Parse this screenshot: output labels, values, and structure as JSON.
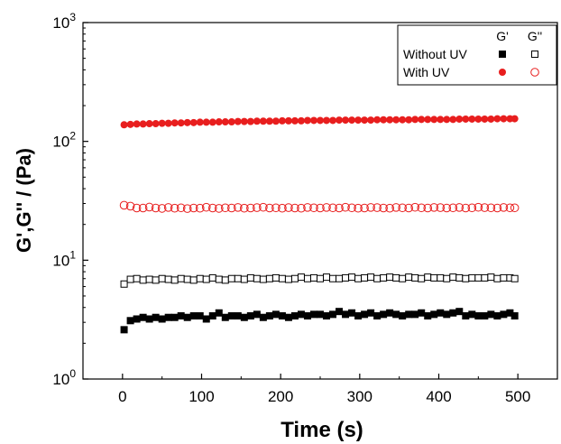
{
  "chart_data": {
    "type": "scatter",
    "title": "",
    "xlabel": "Time (s)",
    "ylabel": "G',G'' / (Pa)",
    "xlim": [
      -50,
      550
    ],
    "ylim": [
      1,
      1000
    ],
    "yscale": "log",
    "xticks": [
      0,
      100,
      200,
      300,
      400,
      500
    ],
    "xtick_labels": [
      "0",
      "100",
      "200",
      "300",
      "400",
      "500"
    ],
    "yticks": [
      1,
      10,
      100,
      1000
    ],
    "ytick_labels": [
      {
        "base": "10",
        "exp": "0"
      },
      {
        "base": "10",
        "exp": "1"
      },
      {
        "base": "10",
        "exp": "2"
      },
      {
        "base": "10",
        "exp": "3"
      }
    ],
    "grid": false,
    "legend": {
      "placement": "top-right",
      "column_headers": [
        "G'",
        "G''"
      ],
      "rows": [
        "Without UV",
        "With UV"
      ]
    },
    "x": [
      2,
      10,
      18,
      26,
      34,
      42,
      50,
      58,
      66,
      74,
      82,
      90,
      98,
      106,
      114,
      122,
      130,
      138,
      146,
      154,
      162,
      170,
      178,
      186,
      194,
      202,
      210,
      218,
      226,
      234,
      242,
      250,
      258,
      266,
      274,
      282,
      290,
      298,
      306,
      314,
      322,
      330,
      338,
      346,
      354,
      362,
      370,
      378,
      386,
      394,
      402,
      410,
      418,
      426,
      434,
      442,
      450,
      458,
      466,
      474,
      482,
      490,
      496
    ],
    "series": [
      {
        "name": "Without UV G'",
        "marker": "square-filled",
        "color": "#000000",
        "values": [
          2.6,
          3.1,
          3.2,
          3.3,
          3.2,
          3.3,
          3.2,
          3.3,
          3.3,
          3.4,
          3.3,
          3.4,
          3.4,
          3.2,
          3.4,
          3.6,
          3.3,
          3.4,
          3.4,
          3.3,
          3.4,
          3.5,
          3.3,
          3.4,
          3.5,
          3.4,
          3.3,
          3.4,
          3.5,
          3.4,
          3.5,
          3.5,
          3.4,
          3.5,
          3.7,
          3.5,
          3.6,
          3.4,
          3.5,
          3.6,
          3.4,
          3.5,
          3.6,
          3.5,
          3.4,
          3.5,
          3.5,
          3.6,
          3.4,
          3.5,
          3.6,
          3.5,
          3.6,
          3.7,
          3.4,
          3.5,
          3.4,
          3.4,
          3.5,
          3.4,
          3.5,
          3.6,
          3.4
        ]
      },
      {
        "name": "Without UV G''",
        "marker": "square-open",
        "color": "#000000",
        "values": [
          6.3,
          6.9,
          7.0,
          6.8,
          6.9,
          6.8,
          7.0,
          6.9,
          6.8,
          7.0,
          6.9,
          6.8,
          7.0,
          6.9,
          7.1,
          6.9,
          6.8,
          7.0,
          7.0,
          6.9,
          7.1,
          7.0,
          6.9,
          7.0,
          7.1,
          7.0,
          6.9,
          7.0,
          7.2,
          7.0,
          7.1,
          7.0,
          7.2,
          7.0,
          7.0,
          7.1,
          7.2,
          7.0,
          7.1,
          7.2,
          7.0,
          7.1,
          7.2,
          7.1,
          7.0,
          7.2,
          7.1,
          7.0,
          7.2,
          7.1,
          7.1,
          7.0,
          7.2,
          7.1,
          7.0,
          7.1,
          7.1,
          7.1,
          7.2,
          7.0,
          7.1,
          7.1,
          7.0
        ]
      },
      {
        "name": "With UV G'",
        "marker": "circle-filled",
        "color": "#e81e1e",
        "values": [
          138,
          139,
          140,
          140,
          141,
          141,
          142,
          142,
          143,
          143,
          144,
          144,
          145,
          145,
          145,
          146,
          146,
          146,
          147,
          147,
          147,
          148,
          148,
          148,
          148,
          149,
          149,
          149,
          149,
          150,
          150,
          150,
          150,
          150,
          151,
          151,
          151,
          151,
          151,
          151,
          152,
          152,
          152,
          152,
          152,
          152,
          153,
          153,
          153,
          153,
          153,
          153,
          153,
          154,
          154,
          154,
          154,
          154,
          154,
          155,
          155,
          155,
          155
        ]
      },
      {
        "name": "With UV G''",
        "marker": "circle-open",
        "color": "#e81e1e",
        "values": [
          29,
          28.5,
          27.5,
          27.5,
          28,
          27.5,
          27.3,
          27.8,
          27.4,
          27.6,
          27.2,
          27.5,
          27.4,
          27.9,
          27.5,
          27.3,
          27.6,
          27.5,
          27.8,
          27.4,
          27.5,
          27.7,
          27.9,
          27.5,
          27.6,
          27.4,
          27.7,
          27.5,
          27.4,
          27.8,
          27.6,
          27.5,
          27.8,
          27.6,
          27.5,
          27.9,
          27.6,
          27.4,
          27.5,
          27.8,
          27.7,
          27.5,
          27.4,
          27.8,
          27.6,
          27.5,
          27.9,
          27.6,
          27.5,
          27.8,
          27.7,
          27.5,
          27.6,
          27.8,
          27.5,
          27.6,
          27.9,
          27.7,
          27.6,
          27.5,
          27.8,
          27.6,
          27.6
        ]
      }
    ]
  }
}
